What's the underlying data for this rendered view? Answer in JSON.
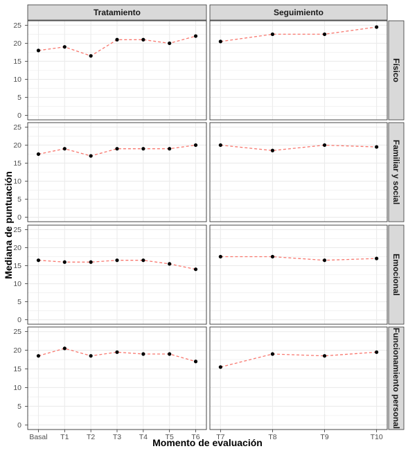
{
  "chart_data": {
    "type": "line",
    "xlabel": "Momento de evaluación",
    "ylabel": "Mediana de puntuación",
    "ylim": [
      0,
      25
    ],
    "yticks": [
      0,
      5,
      10,
      15,
      20,
      25
    ],
    "grid": true,
    "colors": {
      "line": "#f8766d",
      "point": "#000000",
      "strip": "#d9d9d9",
      "grid": "#ebebeb"
    },
    "columns": [
      {
        "title": "Tratamiento",
        "categories": [
          "Basal",
          "T1",
          "T2",
          "T3",
          "T4",
          "T5",
          "T6"
        ]
      },
      {
        "title": "Seguimiento",
        "categories": [
          "T7",
          "T8",
          "T9",
          "T10"
        ]
      }
    ],
    "rows": [
      {
        "title": "Físico",
        "series": [
          [
            18,
            19,
            16.5,
            21,
            21,
            20,
            22
          ],
          [
            20.5,
            22.5,
            22.5,
            24.5
          ]
        ]
      },
      {
        "title": "Familiar y social",
        "series": [
          [
            17.5,
            19,
            17,
            19,
            19,
            19,
            20
          ],
          [
            20,
            18.5,
            20,
            19.5
          ]
        ]
      },
      {
        "title": "Emocional",
        "series": [
          [
            16.5,
            16,
            16,
            16.5,
            16.5,
            15.5,
            14
          ],
          [
            17.5,
            17.5,
            16.5,
            17
          ]
        ]
      },
      {
        "title": "Funcionamiento personal",
        "series": [
          [
            18.5,
            20.5,
            18.5,
            19.5,
            19,
            19,
            17
          ],
          [
            15.5,
            19,
            18.5,
            19.5
          ]
        ]
      }
    ]
  }
}
